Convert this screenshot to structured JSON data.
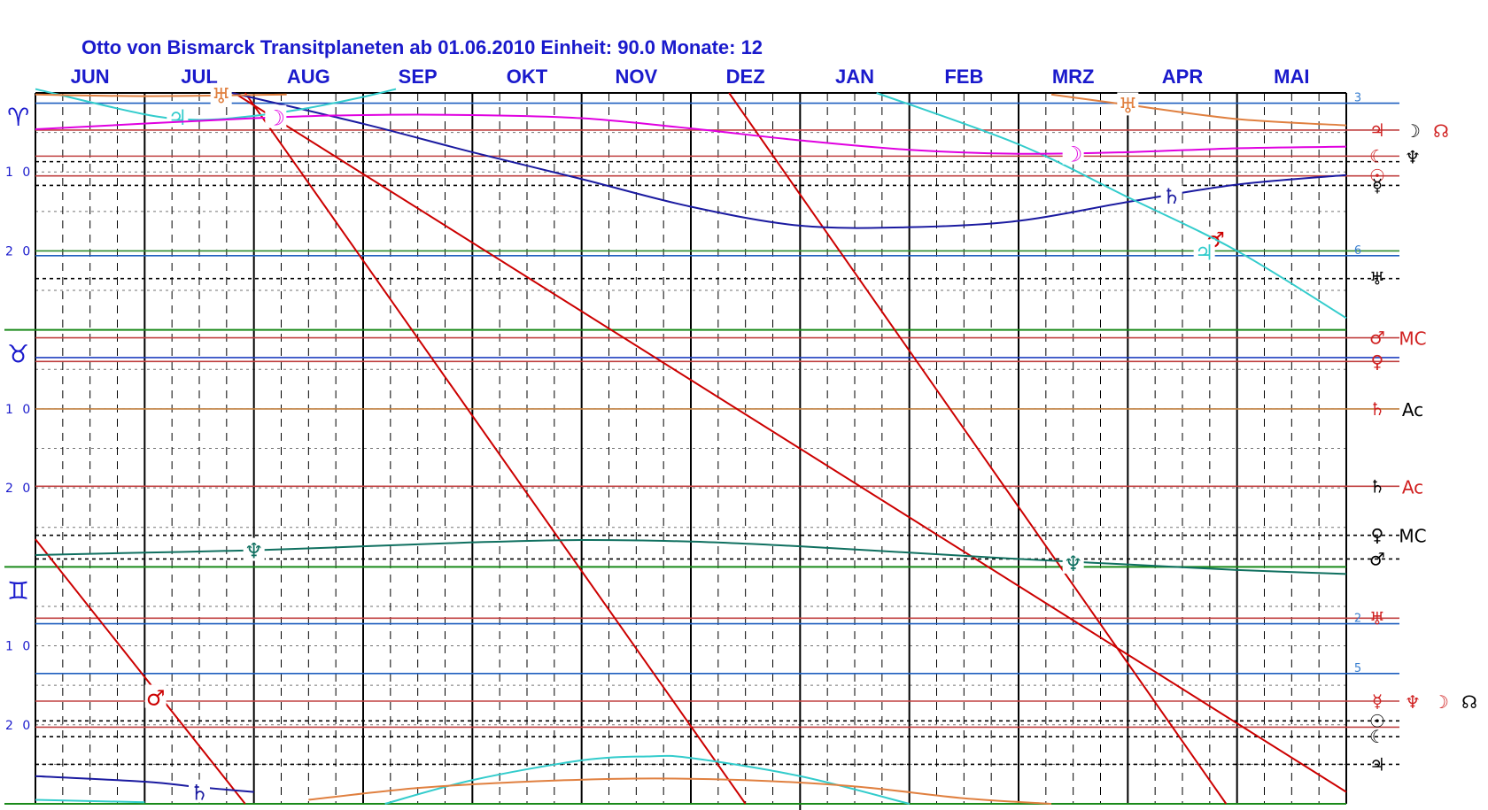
{
  "chart_data": {
    "type": "line",
    "title": "Otto von Bismarck  Transitplaneten ab 01.06.2010  Einheit: 90.0  Monate:  12",
    "x_unit": "months from 01.06.2010",
    "xlim": [
      0,
      12
    ],
    "y_unit": "degrees (0-90, top to bottom)",
    "ylim": [
      0,
      90
    ],
    "months": [
      "JUN",
      "JUL",
      "AUG",
      "SEP",
      "OKT",
      "NOV",
      "DEZ",
      "JAN",
      "FEB",
      "MRZ",
      "APR",
      "MAI"
    ],
    "degree_ticks": [
      {
        "label": "1 0",
        "y": 10
      },
      {
        "label": "2 0",
        "y": 20
      },
      {
        "label": "1 0",
        "y": 40
      },
      {
        "label": "2 0",
        "y": 50
      },
      {
        "label": "1 0",
        "y": 70
      },
      {
        "label": "2 0",
        "y": 80
      }
    ],
    "signs": [
      {
        "glyph": "♈",
        "y": 3,
        "name": "aries"
      },
      {
        "glyph": "♉",
        "y": 33,
        "name": "taurus"
      },
      {
        "glyph": "♊",
        "y": 63,
        "name": "gemini"
      }
    ],
    "reference_lines": [
      {
        "y": 1.3,
        "color": "#1f5fbf",
        "label": "3",
        "label_color": "#3a7fd0"
      },
      {
        "y": 4.7,
        "color": "#c04040",
        "label": "♃",
        "label_color": "#d02020",
        "extra": [
          {
            "t": "☽",
            "c": "#000000"
          },
          {
            "t": "☊",
            "c": "#d02020"
          }
        ]
      },
      {
        "y": 8.0,
        "color": "#c04040",
        "label": "☾",
        "label_color": "#d02020",
        "extra": [
          {
            "t": "♆",
            "c": "#000000"
          }
        ]
      },
      {
        "y": 8.7,
        "color": "#000000",
        "dashed": true
      },
      {
        "y": 10.5,
        "color": "#c04040",
        "label": "☉",
        "label_color": "#d02020"
      },
      {
        "y": 11.7,
        "color": "#000000",
        "dashed": true,
        "label": "☿",
        "label_color": "#000000"
      },
      {
        "y": 20.0,
        "color": "#2e8b2e"
      },
      {
        "y": 20.6,
        "color": "#1f5fbf",
        "label": "6",
        "label_color": "#3a7fd0"
      },
      {
        "y": 23.5,
        "color": "#000000",
        "dashed": true,
        "label": "♅",
        "label_color": "#000000"
      },
      {
        "y": 30.0,
        "color": "#1a8a1a"
      },
      {
        "y": 31.0,
        "color": "#c04040",
        "label": "♂",
        "label_color": "#d02020",
        "extra": [
          {
            "t": "MC",
            "c": "#d02020"
          }
        ]
      },
      {
        "y": 33.5,
        "color": "#1f3fbf"
      },
      {
        "y": 34.0,
        "color": "#c04040",
        "label": "♀",
        "label_color": "#d02020"
      },
      {
        "y": 40.0,
        "color": "#c08040",
        "label": "♄",
        "label_color": "#d02020",
        "extra": [
          {
            "t": "Ac",
            "c": "#000000"
          }
        ]
      },
      {
        "y": 49.8,
        "color": "#c04040",
        "label": "♄",
        "label_color": "#000000",
        "extra": [
          {
            "t": "Ac",
            "c": "#d02020"
          }
        ]
      },
      {
        "y": 56.0,
        "color": "#000000",
        "dashed": true,
        "label": "♀",
        "label_color": "#000000",
        "extra": [
          {
            "t": "MC",
            "c": "#000000"
          }
        ]
      },
      {
        "y": 59.0,
        "color": "#000000",
        "dashed": true,
        "label": "♂",
        "label_color": "#000000"
      },
      {
        "y": 60.0,
        "color": "#1a8a1a"
      },
      {
        "y": 66.5,
        "color": "#c04040",
        "label": "♅",
        "label_color": "#d02020"
      },
      {
        "y": 67.2,
        "color": "#1f5fbf",
        "label": "2",
        "label_color": "#3a7fd0"
      },
      {
        "y": 73.5,
        "color": "#1f5fbf",
        "label": "5",
        "label_color": "#3a7fd0"
      },
      {
        "y": 77.0,
        "color": "#c04040",
        "label": "☿",
        "label_color": "#d02020",
        "extra": [
          {
            "t": "♆",
            "c": "#d02020"
          },
          {
            "t": "☽",
            "c": "#d02020"
          },
          {
            "t": "☊",
            "c": "#000000"
          }
        ]
      },
      {
        "y": 79.5,
        "color": "#000000",
        "dashed": true,
        "label": "☉",
        "label_color": "#000000"
      },
      {
        "y": 80.3,
        "color": "#c04040"
      },
      {
        "y": 81.5,
        "color": "#000000",
        "dashed": true,
        "label": "☾",
        "label_color": "#000000"
      },
      {
        "y": 85.0,
        "color": "#000000",
        "dashed": true,
        "label": "♃",
        "label_color": "#000000"
      },
      {
        "y": 90.0,
        "color": "#1a8a1a"
      }
    ],
    "series": [
      {
        "name": "♂",
        "color": "#cc0000",
        "segments": [
          [
            [
              0,
              56.5
            ],
            [
              1.92,
              90
            ]
          ],
          [
            [
              1.82,
              0
            ],
            [
              12,
              88.5
            ]
          ]
        ],
        "markers": [
          {
            "x": 1.1,
            "y": 76.5
          },
          {
            "x": 10.8,
            "y": 18.5
          }
        ]
      },
      {
        "name": "☿",
        "color": "#cc0000",
        "segments": [
          [
            [
              1.92,
              0
            ],
            [
              6.5,
              90
            ]
          ],
          [
            [
              6.35,
              0
            ],
            [
              10.9,
              90
            ]
          ]
        ],
        "markers": []
      },
      {
        "name": "♄",
        "color": "#1a1aa0",
        "segments": [
          [
            [
              1.8,
              0
            ],
            [
              3,
              3.9
            ],
            [
              4,
              7.5
            ],
            [
              5,
              10.9
            ],
            [
              6,
              14.4
            ],
            [
              7,
              16.8
            ],
            [
              8,
              17.0
            ],
            [
              9,
              16.2
            ],
            [
              10,
              13.8
            ],
            [
              11,
              11.6
            ],
            [
              12,
              10.4
            ]
          ],
          [
            [
              0,
              86.5
            ],
            [
              1,
              87.2
            ],
            [
              1.5,
              87.9
            ],
            [
              2,
              88.5
            ]
          ]
        ],
        "markers": [
          {
            "x": 10.4,
            "y": 13.0
          },
          {
            "x": 1.5,
            "y": 88.5
          }
        ]
      },
      {
        "name": "♃",
        "color": "#33cccc",
        "segments": [
          [
            [
              0,
              -0.5
            ],
            [
              1,
              2.7
            ],
            [
              1.5,
              3.4
            ],
            [
              2,
              2.9
            ],
            [
              2.5,
              1.9
            ],
            [
              3,
              0.5
            ],
            [
              3.3,
              -0.5
            ]
          ],
          [
            [
              7.7,
              0
            ],
            [
              9,
              6.5
            ],
            [
              10,
              13.2
            ],
            [
              11,
              20
            ],
            [
              12,
              28.5
            ]
          ],
          [
            [
              0,
              89.5
            ],
            [
              1,
              89.8
            ]
          ],
          [
            [
              3.2,
              90
            ],
            [
              4,
              87
            ],
            [
              5,
              84.5
            ],
            [
              5.6,
              84
            ],
            [
              6,
              84.2
            ],
            [
              7,
              86.5
            ],
            [
              8,
              90
            ]
          ]
        ],
        "markers": [
          {
            "x": 1.3,
            "y": 3.0
          },
          {
            "x": 10.7,
            "y": 20.1
          }
        ]
      },
      {
        "name": "☽",
        "color": "#e000e0",
        "segments": [
          [
            [
              0,
              4.6
            ],
            [
              2,
              3.2
            ],
            [
              3,
              2.8
            ],
            [
              4,
              2.8
            ],
            [
              5,
              3.2
            ],
            [
              6,
              4.5
            ],
            [
              7,
              6.0
            ],
            [
              8,
              7.2
            ],
            [
              9,
              7.7
            ],
            [
              10,
              7.5
            ],
            [
              11,
              7.0
            ],
            [
              12,
              6.8
            ]
          ]
        ],
        "markers": [
          {
            "x": 2.2,
            "y": 3.1
          },
          {
            "x": 9.5,
            "y": 7.7
          }
        ]
      },
      {
        "name": "♅",
        "color": "#e08040",
        "segments": [
          [
            [
              0,
              0.2
            ],
            [
              1,
              0.4
            ],
            [
              2.3,
              0.2
            ]
          ],
          [
            [
              9.3,
              0.2
            ],
            [
              10,
              1.5
            ],
            [
              11,
              3.3
            ],
            [
              12,
              4.1
            ]
          ],
          [
            [
              2.5,
              89.5
            ],
            [
              3.5,
              88.0
            ],
            [
              4.5,
              87.2
            ],
            [
              5.5,
              86.8
            ],
            [
              6.5,
              87.0
            ],
            [
              7.5,
              87.8
            ],
            [
              8.5,
              89.3
            ],
            [
              9.3,
              90
            ]
          ]
        ],
        "markers": [
          {
            "x": 1.7,
            "y": 0.3
          },
          {
            "x": 10.0,
            "y": 1.5
          }
        ]
      },
      {
        "name": "♆",
        "color": "#107060",
        "segments": [
          [
            [
              0,
              58.5
            ],
            [
              1,
              58.2
            ],
            [
              2,
              57.9
            ],
            [
              3,
              57.4
            ],
            [
              4,
              56.9
            ],
            [
              5,
              56.6
            ],
            [
              6,
              56.8
            ],
            [
              7,
              57.4
            ],
            [
              8,
              58.2
            ],
            [
              9,
              59.0
            ],
            [
              10,
              59.7
            ],
            [
              11,
              60.4
            ],
            [
              12,
              60.9
            ]
          ]
        ],
        "markers": [
          {
            "x": 2.0,
            "y": 57.9
          },
          {
            "x": 9.5,
            "y": 59.5
          }
        ]
      }
    ]
  }
}
